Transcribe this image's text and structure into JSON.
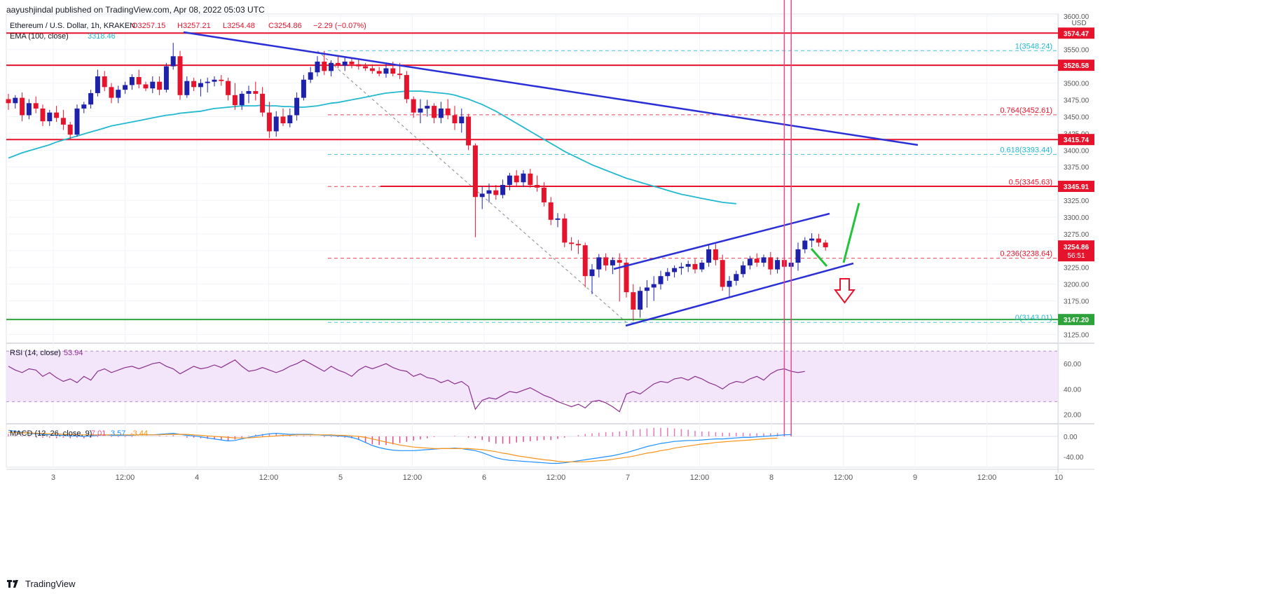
{
  "header": {
    "publish_credit": "aayushjindal published on TradingView.com, Apr 08, 2022 05:03 UTC",
    "symbol": "Ethereum / U.S. Dollar, 1h, KRAKEN",
    "ohlc": {
      "open": "O3257.15",
      "high": "H3257.21",
      "low": "L3254.48",
      "close": "C3254.86",
      "change": "−2.29 (−0.07%)"
    },
    "ema_label": "EMA (100, close)",
    "ema_value": "3318.46"
  },
  "footer": {
    "brand": "TradingView"
  },
  "colors": {
    "up": "#1e22aa",
    "down": "#e5142c",
    "ema": "#22b8cf",
    "resistance": "#e5142c",
    "support": "#2fa33b",
    "trend": "#2a30d6",
    "fib_red": "#e5142c",
    "fib_teal": "#22b8cf",
    "rsi": "#8a2f8f",
    "rsi_band": "#f3e6fa",
    "macd": "#1e90ff",
    "signal": "#f7931a",
    "arrow_green": "#22c23a",
    "arrow_red": "#e5142c"
  },
  "chart_data": [
    {
      "type": "candlestick",
      "title": "Ethereum / U.S. Dollar, 1h, KRAKEN",
      "x_ticks": [
        "3",
        "12:00",
        "4",
        "12:00",
        "5",
        "12:00",
        "6",
        "12:00",
        "7",
        "12:00",
        "8",
        "12:00",
        "9",
        "12:00",
        "10"
      ],
      "y_ticks": [
        "3600.00",
        "3575.00",
        "3550.00",
        "3525.00",
        "3500.00",
        "3475.00",
        "3450.00",
        "3425.00",
        "3400.00",
        "3375.00",
        "3350.00",
        "3325.00",
        "3300.00",
        "3275.00",
        "3250.00",
        "3225.00",
        "3200.00",
        "3175.00",
        "3150.00",
        "3125.00"
      ],
      "y_unit": "USD",
      "ylim": [
        3115,
        3603
      ],
      "candles": [
        [
          3476,
          3484,
          3460,
          3470
        ],
        [
          3470,
          3482,
          3462,
          3478
        ],
        [
          3478,
          3486,
          3443,
          3452
        ],
        [
          3452,
          3476,
          3446,
          3470
        ],
        [
          3470,
          3480,
          3455,
          3462
        ],
        [
          3462,
          3468,
          3436,
          3443
        ],
        [
          3443,
          3460,
          3436,
          3456
        ],
        [
          3456,
          3466,
          3442,
          3448
        ],
        [
          3448,
          3460,
          3430,
          3438
        ],
        [
          3438,
          3442,
          3416,
          3423
        ],
        [
          3423,
          3468,
          3420,
          3462
        ],
        [
          3462,
          3472,
          3455,
          3468
        ],
        [
          3468,
          3490,
          3462,
          3485
        ],
        [
          3485,
          3520,
          3480,
          3510
        ],
        [
          3510,
          3518,
          3488,
          3494
        ],
        [
          3494,
          3500,
          3470,
          3478
        ],
        [
          3478,
          3496,
          3470,
          3490
        ],
        [
          3490,
          3502,
          3484,
          3497
        ],
        [
          3497,
          3513,
          3490,
          3509
        ],
        [
          3509,
          3520,
          3492,
          3498
        ],
        [
          3498,
          3502,
          3488,
          3492
        ],
        [
          3492,
          3510,
          3485,
          3502
        ],
        [
          3502,
          3510,
          3482,
          3490
        ],
        [
          3490,
          3530,
          3486,
          3525
        ],
        [
          3525,
          3560,
          3520,
          3540
        ],
        [
          3540,
          3548,
          3475,
          3482
        ],
        [
          3482,
          3510,
          3478,
          3503
        ],
        [
          3503,
          3508,
          3488,
          3494
        ],
        [
          3494,
          3506,
          3480,
          3500
        ],
        [
          3500,
          3508,
          3486,
          3502
        ],
        [
          3502,
          3510,
          3495,
          3505
        ],
        [
          3505,
          3512,
          3496,
          3503
        ],
        [
          3503,
          3508,
          3474,
          3482
        ],
        [
          3482,
          3500,
          3460,
          3467
        ],
        [
          3467,
          3488,
          3460,
          3484
        ],
        [
          3484,
          3496,
          3470,
          3488
        ],
        [
          3488,
          3502,
          3474,
          3484
        ],
        [
          3484,
          3494,
          3450,
          3456
        ],
        [
          3456,
          3472,
          3418,
          3428
        ],
        [
          3428,
          3458,
          3420,
          3450
        ],
        [
          3450,
          3462,
          3436,
          3440
        ],
        [
          3440,
          3462,
          3434,
          3452
        ],
        [
          3452,
          3486,
          3444,
          3478
        ],
        [
          3478,
          3512,
          3474,
          3505
        ],
        [
          3505,
          3524,
          3500,
          3516
        ],
        [
          3516,
          3540,
          3510,
          3532
        ],
        [
          3532,
          3548,
          3512,
          3518
        ],
        [
          3518,
          3534,
          3510,
          3530
        ],
        [
          3530,
          3542,
          3522,
          3526
        ],
        [
          3526,
          3538,
          3518,
          3532
        ],
        [
          3532,
          3538,
          3522,
          3528
        ],
        [
          3528,
          3535,
          3520,
          3525
        ],
        [
          3525,
          3530,
          3518,
          3522
        ],
        [
          3522,
          3528,
          3514,
          3518
        ],
        [
          3518,
          3524,
          3510,
          3514
        ],
        [
          3514,
          3530,
          3508,
          3522
        ],
        [
          3522,
          3532,
          3510,
          3514
        ],
        [
          3514,
          3530,
          3506,
          3512
        ],
        [
          3512,
          3518,
          3470,
          3476
        ],
        [
          3476,
          3480,
          3448,
          3456
        ],
        [
          3456,
          3476,
          3440,
          3462
        ],
        [
          3462,
          3475,
          3450,
          3466
        ],
        [
          3466,
          3470,
          3440,
          3448
        ],
        [
          3448,
          3472,
          3440,
          3462
        ],
        [
          3462,
          3476,
          3446,
          3452
        ],
        [
          3452,
          3466,
          3430,
          3440
        ],
        [
          3440,
          3462,
          3426,
          3450
        ],
        [
          3450,
          3454,
          3400,
          3407
        ],
        [
          3407,
          3410,
          3270,
          3330
        ],
        [
          3330,
          3346,
          3312,
          3335
        ],
        [
          3335,
          3350,
          3322,
          3340
        ],
        [
          3340,
          3348,
          3326,
          3333
        ],
        [
          3333,
          3356,
          3328,
          3348
        ],
        [
          3348,
          3366,
          3340,
          3362
        ],
        [
          3362,
          3370,
          3346,
          3352
        ],
        [
          3352,
          3370,
          3345,
          3365
        ],
        [
          3365,
          3372,
          3344,
          3348
        ],
        [
          3348,
          3362,
          3338,
          3344
        ],
        [
          3344,
          3352,
          3316,
          3322
        ],
        [
          3322,
          3330,
          3288,
          3296
        ],
        [
          3296,
          3306,
          3285,
          3298
        ],
        [
          3298,
          3305,
          3255,
          3262
        ],
        [
          3262,
          3270,
          3250,
          3260
        ],
        [
          3260,
          3266,
          3245,
          3258
        ],
        [
          3258,
          3262,
          3195,
          3212
        ],
        [
          3212,
          3230,
          3185,
          3222
        ],
        [
          3222,
          3245,
          3210,
          3240
        ],
        [
          3240,
          3246,
          3220,
          3228
        ],
        [
          3228,
          3240,
          3215,
          3236
        ],
        [
          3236,
          3246,
          3174,
          3232
        ],
        [
          3232,
          3238,
          3180,
          3188
        ],
        [
          3188,
          3200,
          3145,
          3162
        ],
        [
          3162,
          3196,
          3150,
          3190
        ],
        [
          3190,
          3206,
          3165,
          3195
        ],
        [
          3195,
          3212,
          3175,
          3200
        ],
        [
          3200,
          3220,
          3192,
          3212
        ],
        [
          3212,
          3224,
          3205,
          3218
        ],
        [
          3218,
          3228,
          3210,
          3224
        ],
        [
          3224,
          3232,
          3214,
          3226
        ],
        [
          3226,
          3235,
          3218,
          3230
        ],
        [
          3230,
          3238,
          3216,
          3222
        ],
        [
          3222,
          3236,
          3218,
          3232
        ],
        [
          3232,
          3258,
          3226,
          3252
        ],
        [
          3252,
          3260,
          3228,
          3236
        ],
        [
          3236,
          3244,
          3190,
          3196
        ],
        [
          3196,
          3212,
          3180,
          3205
        ],
        [
          3205,
          3220,
          3198,
          3215
        ],
        [
          3215,
          3234,
          3210,
          3228
        ],
        [
          3228,
          3242,
          3222,
          3238
        ],
        [
          3238,
          3246,
          3226,
          3232
        ],
        [
          3232,
          3244,
          3226,
          3240
        ],
        [
          3240,
          3248,
          3214,
          3222
        ],
        [
          3222,
          3240,
          3216,
          3236
        ],
        [
          3236,
          3244,
          3224,
          3226
        ],
        [
          3226,
          3236,
          3218,
          3232
        ],
        [
          3232,
          3262,
          3220,
          3252
        ],
        [
          3252,
          3270,
          3246,
          3265
        ],
        [
          3265,
          3276,
          3255,
          3268
        ],
        [
          3268,
          3275,
          3256,
          3262
        ],
        [
          3262,
          3266,
          3250,
          3255
        ]
      ],
      "ema_100": [
        3388,
        3392,
        3396,
        3399,
        3402,
        3405,
        3408,
        3412,
        3415,
        3418,
        3421,
        3424,
        3427,
        3430,
        3433,
        3436,
        3438,
        3440,
        3442,
        3444,
        3446,
        3448,
        3450,
        3452,
        3453,
        3455,
        3456,
        3457,
        3458,
        3460,
        3462,
        3463,
        3464,
        3465,
        3466,
        3466,
        3466,
        3467,
        3466,
        3466,
        3465,
        3465,
        3464,
        3464,
        3465,
        3466,
        3468,
        3470,
        3471,
        3473,
        3475,
        3477,
        3479,
        3481,
        3483,
        3485,
        3486,
        3487,
        3488,
        3488,
        3488,
        3487,
        3486,
        3485,
        3484,
        3482,
        3479,
        3476,
        3472,
        3468,
        3463,
        3458,
        3452,
        3446,
        3440,
        3434,
        3428,
        3422,
        3416,
        3410,
        3404,
        3398,
        3393,
        3388,
        3383,
        3378,
        3374,
        3370,
        3366,
        3362,
        3358,
        3355,
        3352,
        3349,
        3346,
        3343,
        3340,
        3337,
        3334,
        3332,
        3330,
        3328,
        3326,
        3324,
        3322,
        3321,
        3320
      ],
      "levels": [
        {
          "label": "3574.47",
          "value": 3574.47,
          "kind": "resistance"
        },
        {
          "label": "3526.58",
          "value": 3526.58,
          "kind": "resistance"
        },
        {
          "label": "3415.74",
          "value": 3415.74,
          "kind": "resistance"
        },
        {
          "label": "3345.91",
          "value": 3345.91,
          "kind": "resistance"
        },
        {
          "label": "3147.20",
          "value": 3147.2,
          "kind": "support"
        },
        {
          "label": "3254.86",
          "value": 3254.86,
          "kind": "last",
          "countdown": "56:51"
        }
      ],
      "fib_levels": [
        {
          "label": "1(3548.24)",
          "value": 3548.24,
          "color": "teal"
        },
        {
          "label": "0.764(3452.61)",
          "value": 3452.61,
          "color": "red"
        },
        {
          "label": "0.618(3393.44)",
          "value": 3393.44,
          "color": "teal"
        },
        {
          "label": "0.5(3345.63)",
          "value": 3345.63,
          "color": "red"
        },
        {
          "label": "0.236(3238.64)",
          "value": 3238.64,
          "color": "red"
        },
        {
          "label": "0(3143.01)",
          "value": 3143.01,
          "color": "teal"
        }
      ]
    },
    {
      "type": "line",
      "title": "RSI (14, close)",
      "value": "53.94",
      "ylim": [
        13,
        74
      ],
      "y_ticks": [
        "60.00",
        "40.00",
        "20.00"
      ],
      "band": [
        30,
        70
      ],
      "values": [
        58,
        55,
        53,
        56,
        55,
        50,
        53,
        49,
        46,
        48,
        45,
        50,
        47,
        54,
        56,
        53,
        55,
        57,
        58,
        56,
        58,
        60,
        61,
        58,
        56,
        52,
        55,
        58,
        56,
        57,
        59,
        57,
        60,
        63,
        58,
        54,
        55,
        57,
        55,
        53,
        55,
        58,
        60,
        63,
        60,
        57,
        54,
        58,
        55,
        53,
        50,
        55,
        58,
        56,
        58,
        60,
        57,
        55,
        54,
        50,
        52,
        49,
        48,
        45,
        47,
        44,
        46,
        42,
        24,
        31,
        33,
        32,
        35,
        38,
        37,
        39,
        41,
        38,
        35,
        33,
        30,
        28,
        26,
        28,
        25,
        30,
        31,
        29,
        26,
        22,
        36,
        38,
        36,
        40,
        44,
        46,
        45,
        48,
        49,
        47,
        50,
        48,
        45,
        43,
        40,
        44,
        46,
        45,
        48,
        50,
        47,
        52,
        55,
        56,
        54,
        53,
        53.94
      ]
    },
    {
      "type": "line",
      "title": "MACD (12, 26, close, 9)",
      "values_text": {
        "hist": "7.01",
        "macd": "3.57",
        "signal": "-3.44"
      },
      "ylim": [
        -62,
        22
      ],
      "y_ticks": [
        "0.00",
        "-40.00"
      ],
      "macd_line": [
        12,
        10,
        8,
        6,
        5,
        4,
        3,
        2,
        2,
        1,
        1,
        0,
        1,
        2,
        3,
        2,
        2,
        2,
        2,
        3,
        3,
        3,
        4,
        5,
        6,
        4,
        2,
        1,
        -1,
        -3,
        -5,
        -7,
        -9,
        -8,
        -5,
        -2,
        1,
        3,
        5,
        6,
        5,
        4,
        4,
        4,
        4,
        3,
        2,
        2,
        1,
        0,
        -2,
        -6,
        -12,
        -18,
        -22,
        -25,
        -27,
        -28,
        -28,
        -28,
        -27,
        -26,
        -25,
        -24,
        -24,
        -23,
        -24,
        -26,
        -28,
        -32,
        -37,
        -42,
        -45,
        -47,
        -48,
        -49,
        -50,
        -51,
        -52,
        -53,
        -53,
        -52,
        -50,
        -48,
        -46,
        -44,
        -42,
        -40,
        -38,
        -35,
        -32,
        -28,
        -24,
        -20,
        -17,
        -14,
        -12,
        -10,
        -9,
        -8,
        -8,
        -7,
        -6,
        -5,
        -5,
        -4,
        -3,
        -2,
        -2,
        -1,
        0,
        1,
        2,
        3,
        3.57
      ],
      "signal_line": [
        8,
        8,
        7,
        7,
        6,
        6,
        5,
        5,
        4,
        4,
        3,
        3,
        3,
        3,
        3,
        3,
        3,
        3,
        3,
        3,
        3,
        3,
        3,
        4,
        4,
        4,
        4,
        3,
        2,
        1,
        0,
        -1,
        -2,
        -3,
        -3,
        -3,
        -2,
        -1,
        0,
        1,
        2,
        2,
        3,
        3,
        3,
        3,
        3,
        3,
        2,
        2,
        1,
        0,
        -2,
        -5,
        -8,
        -11,
        -14,
        -17,
        -19,
        -21,
        -22,
        -23,
        -24,
        -24,
        -24,
        -24,
        -24,
        -24,
        -25,
        -26,
        -28,
        -30,
        -33,
        -35,
        -38,
        -40,
        -42,
        -44,
        -46,
        -47,
        -49,
        -50,
        -50,
        -50,
        -50,
        -49,
        -48,
        -47,
        -45,
        -43,
        -41,
        -39,
        -36,
        -33,
        -31,
        -28,
        -26,
        -23,
        -21,
        -19,
        -17,
        -15,
        -14,
        -12,
        -11,
        -10,
        -9,
        -8,
        -7,
        -6,
        -5,
        -4,
        -3.44
      ]
    }
  ]
}
